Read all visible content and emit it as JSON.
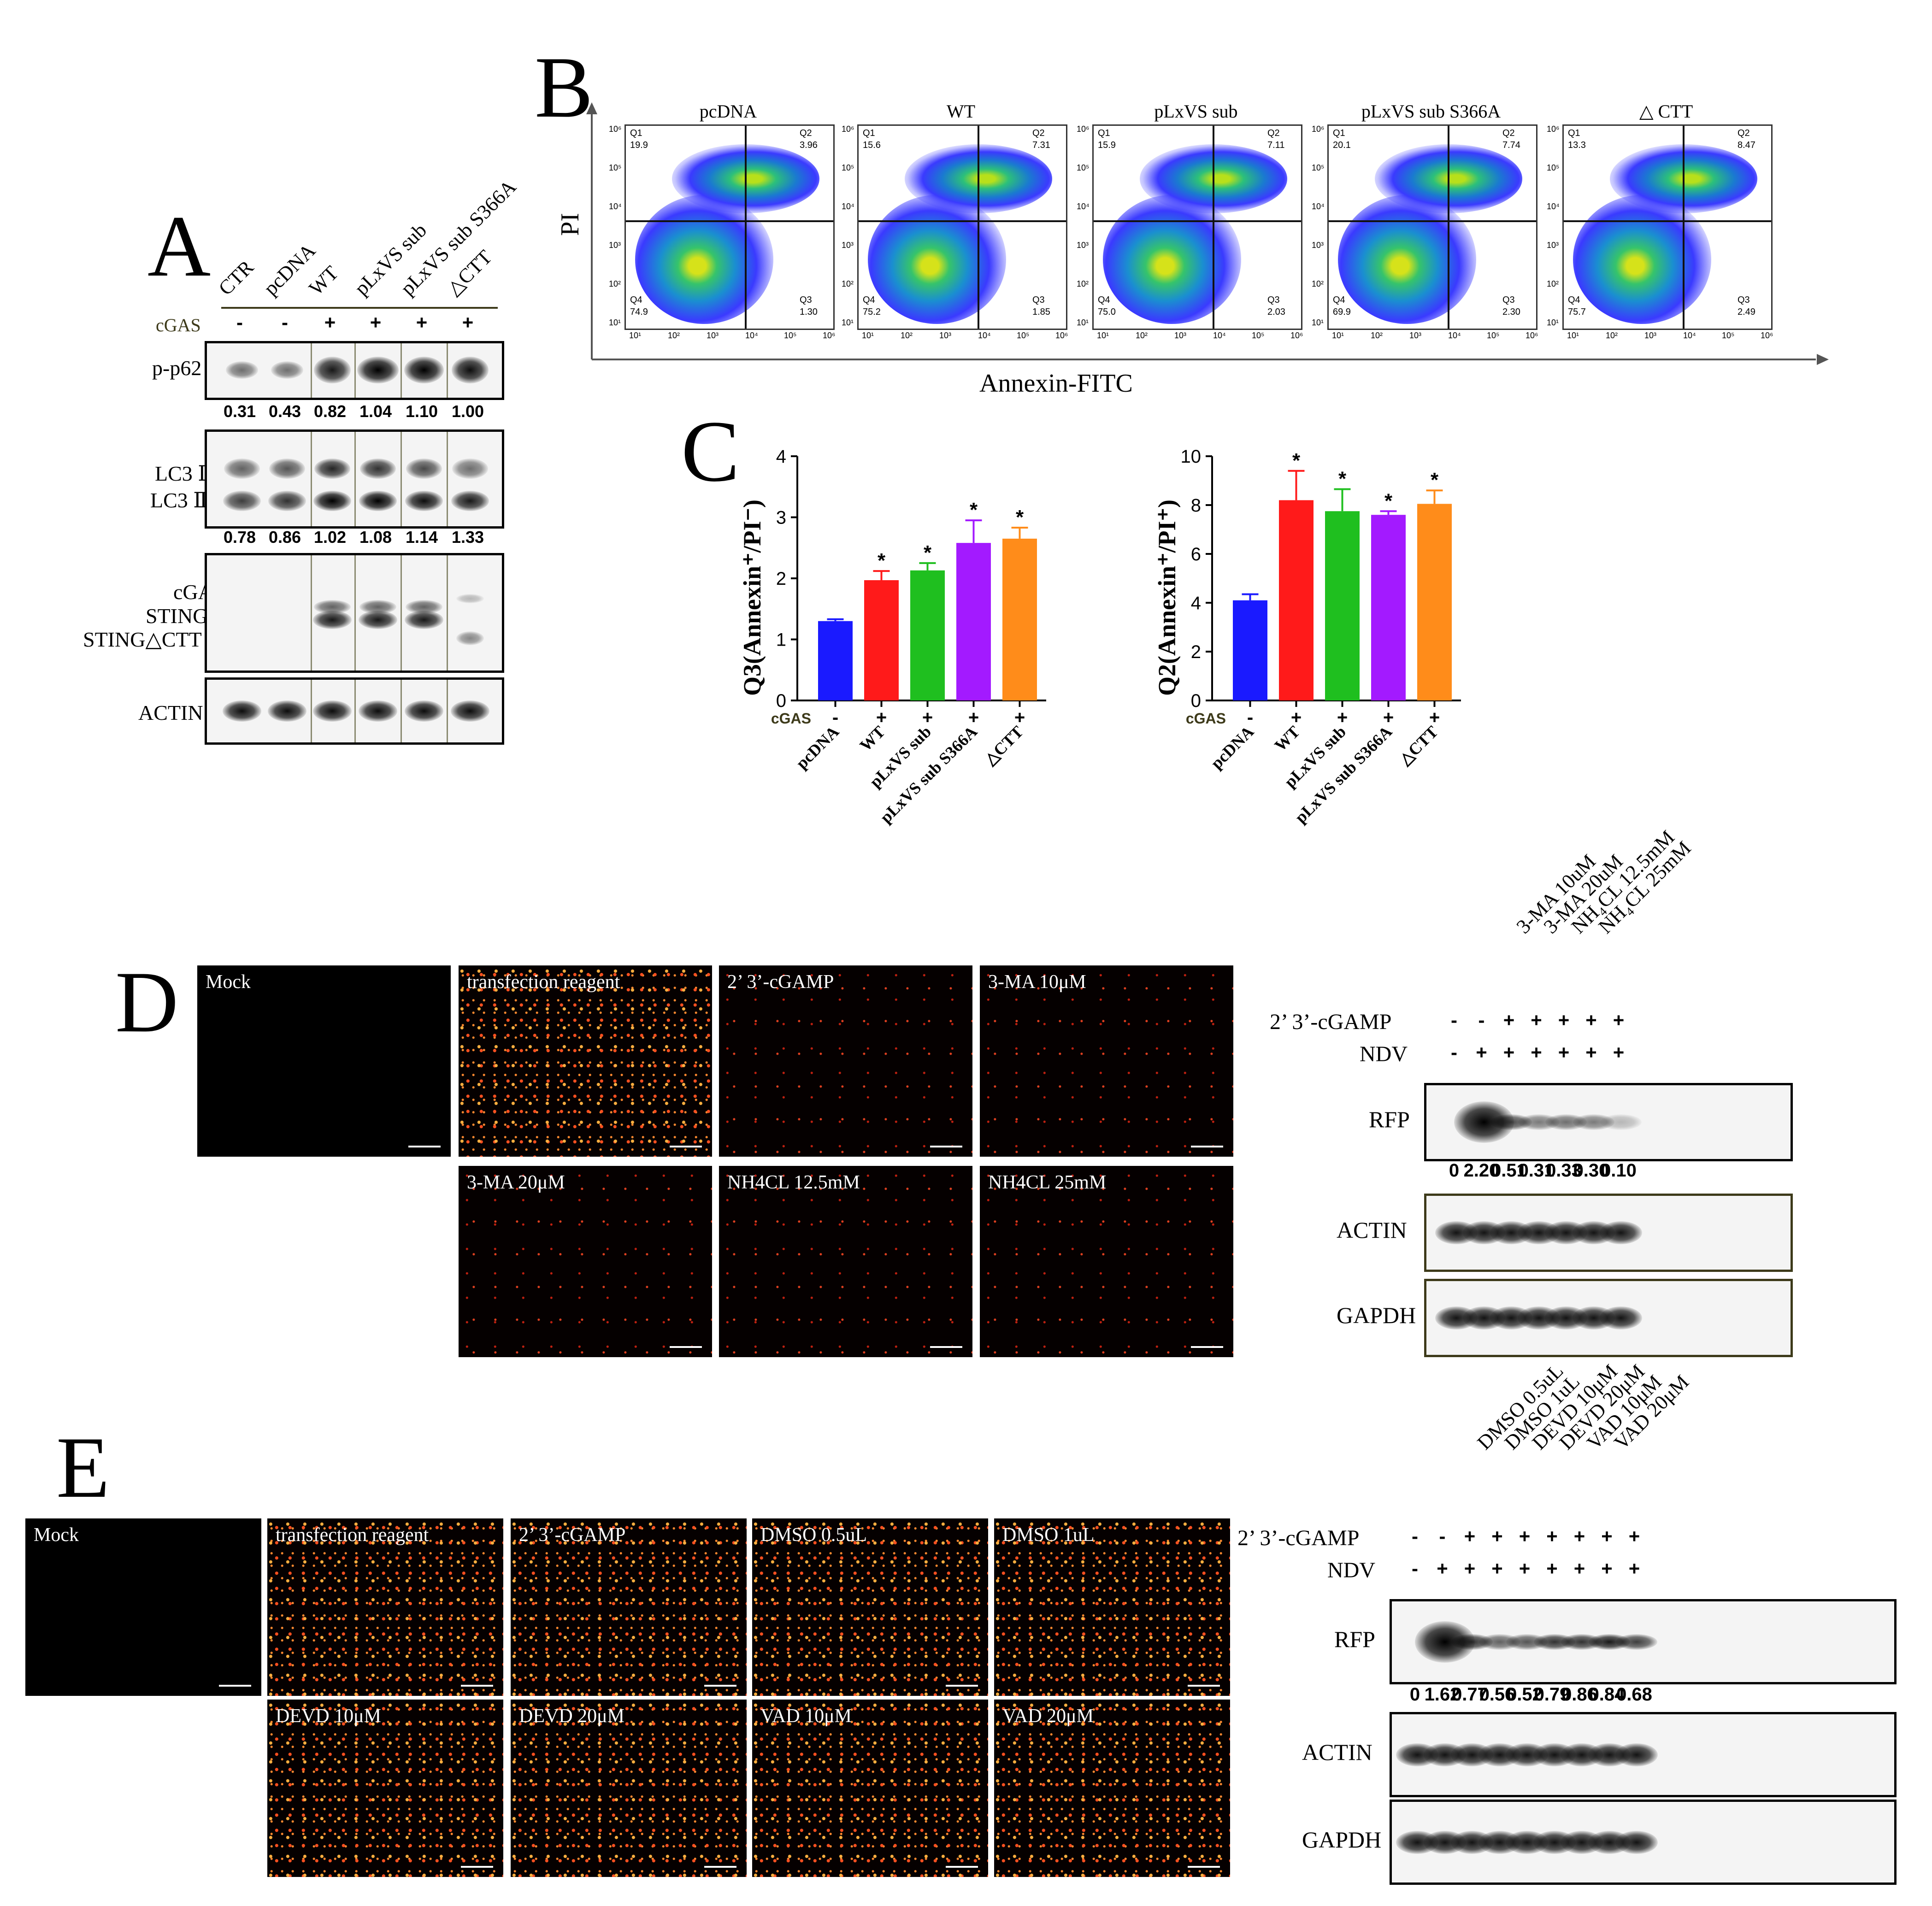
{
  "panels": {
    "A": "A",
    "B": "B",
    "C": "C",
    "D": "D",
    "E": "E"
  },
  "panelA": {
    "lanes": [
      "CTR",
      "pcDNA",
      "WT",
      "pLxVS sub",
      "pLxVS sub S366A",
      "△CTT"
    ],
    "cgas_label": "cGAS",
    "cgas_signs": [
      "-",
      "-",
      "+",
      "+",
      "+",
      "+"
    ],
    "blot_labels": {
      "p62": "p-p62",
      "lc3_1": "LC3 Ⅰ",
      "lc3_2": "LC3 Ⅱ",
      "cgas": "cGAS",
      "sting_fl": "STING FL",
      "sting_ctt": "STING△CTT",
      "actin": "ACTIN"
    },
    "p62_values": [
      "0.31",
      "0.43",
      "0.82",
      "1.04",
      "1.10",
      "1.00"
    ],
    "lc3_values": [
      "0.78",
      "0.86",
      "1.02",
      "1.08",
      "1.14",
      "1.33"
    ]
  },
  "panelB": {
    "ylabel": "PI",
    "xlabel": "Annexin-FITC",
    "plots": [
      {
        "title": "pcDNA",
        "q1": "19.9",
        "q2": "3.96",
        "q3": "1.30",
        "q4": "74.9"
      },
      {
        "title": "WT",
        "q1": "15.6",
        "q2": "7.31",
        "q3": "1.85",
        "q4": "75.2"
      },
      {
        "title": "pLxVS sub",
        "q1": "15.9",
        "q2": "7.11",
        "q3": "2.03",
        "q4": "75.0"
      },
      {
        "title": "pLxVS sub S366A",
        "q1": "20.1",
        "q2": "7.74",
        "q3": "2.30",
        "q4": "69.9"
      },
      {
        "title": "△ CTT",
        "q1": "13.3",
        "q2": "8.47",
        "q3": "2.49",
        "q4": "75.7"
      }
    ],
    "quad_names": {
      "q1": "Q1",
      "q2": "Q2",
      "q3": "Q3",
      "q4": "Q4"
    },
    "tick_labels": [
      "10¹",
      "10²",
      "10³",
      "10⁴",
      "10⁵",
      "10⁶"
    ]
  },
  "chart_data": [
    {
      "type": "bar",
      "ylabel": "Q3(Annexin⁺/PI⁻)",
      "categories": [
        "pcDNA",
        "WT",
        "pLxVS sub",
        "pLxVS sub S366A",
        "△CTT"
      ],
      "values": [
        1.3,
        1.97,
        2.13,
        2.58,
        2.65
      ],
      "errors": [
        0.03,
        0.15,
        0.12,
        0.37,
        0.18
      ],
      "significance": [
        "",
        "*",
        "*",
        "*",
        "*"
      ],
      "colors": [
        "#1a1aff",
        "#ff1a1a",
        "#1fbf1f",
        "#a31aff",
        "#ff8c1a"
      ],
      "ylim": [
        0,
        4
      ],
      "yticks": [
        "0",
        "1",
        "2",
        "3",
        "4"
      ],
      "cgas_label": "cGAS",
      "cgas_signs": [
        "-",
        "+",
        "+",
        "+",
        "+"
      ]
    },
    {
      "type": "bar",
      "ylabel": "Q2(Annexin⁺/PI⁺)",
      "categories": [
        "pcDNA",
        "WT",
        "pLxVS sub",
        "pLxVS sub S366A",
        "△CTT"
      ],
      "values": [
        4.1,
        8.2,
        7.75,
        7.6,
        8.05
      ],
      "errors": [
        0.25,
        1.2,
        0.9,
        0.15,
        0.55
      ],
      "significance": [
        "",
        "*",
        "*",
        "*",
        "*"
      ],
      "colors": [
        "#1a1aff",
        "#ff1a1a",
        "#1fbf1f",
        "#a31aff",
        "#ff8c1a"
      ],
      "ylim": [
        0,
        10
      ],
      "yticks": [
        "0",
        "2",
        "4",
        "6",
        "8",
        "10"
      ],
      "cgas_label": "cGAS",
      "cgas_signs": [
        "-",
        "+",
        "+",
        "+",
        "+"
      ]
    }
  ],
  "panelD": {
    "images": [
      "Mock",
      "transfection reagent",
      "2’ 3’-cGAMP",
      "3-MA 10μM",
      "3-MA 20μM",
      "NH4CL 12.5mM",
      "NH4CL 25mM"
    ],
    "lanes": [
      "3-MA 10uM",
      "3-MA 20uM",
      "NH₄CL 12.5mM",
      "NH₄CL 25mM"
    ],
    "row1_label": "2’ 3’-cGAMP",
    "row1_signs": [
      "-",
      "-",
      "+",
      "+",
      "+",
      "+",
      "+"
    ],
    "row2_label": "NDV",
    "row2_signs": [
      "-",
      "+",
      "+",
      "+",
      "+",
      "+",
      "+"
    ],
    "blots": [
      "RFP",
      "ACTIN",
      "GAPDH"
    ],
    "rfp_values": [
      "0",
      "2.20",
      "0.51",
      "0.31",
      "0.33",
      "0.30",
      "0.10"
    ]
  },
  "panelE": {
    "images": [
      "Mock",
      "transfection reagent",
      "2’ 3’-cGAMP",
      "DMSO 0.5uL",
      "DMSO 1uL",
      "DEVD 10μM",
      "DEVD 20μM",
      "VAD 10μM",
      "VAD 20μM"
    ],
    "lanes": [
      "DMSO 0.5uL",
      "DMSO 1uL",
      "DEVD 10μM",
      "DEVD 20μM",
      "VAD 10μM",
      "VAD 20μM"
    ],
    "row1_label": "2’ 3’-cGAMP",
    "row1_signs": [
      "-",
      "-",
      "+",
      "+",
      "+",
      "+",
      "+",
      "+",
      "+"
    ],
    "row2_label": "NDV",
    "row2_signs": [
      "-",
      "+",
      "+",
      "+",
      "+",
      "+",
      "+",
      "+",
      "+"
    ],
    "blots": [
      "RFP",
      "ACTIN",
      "GAPDH"
    ],
    "rfp_values": [
      "0",
      "1.62",
      "0.77",
      "0.56",
      "0.52",
      "0.79",
      "0.86",
      "0.84",
      "0.68"
    ]
  }
}
